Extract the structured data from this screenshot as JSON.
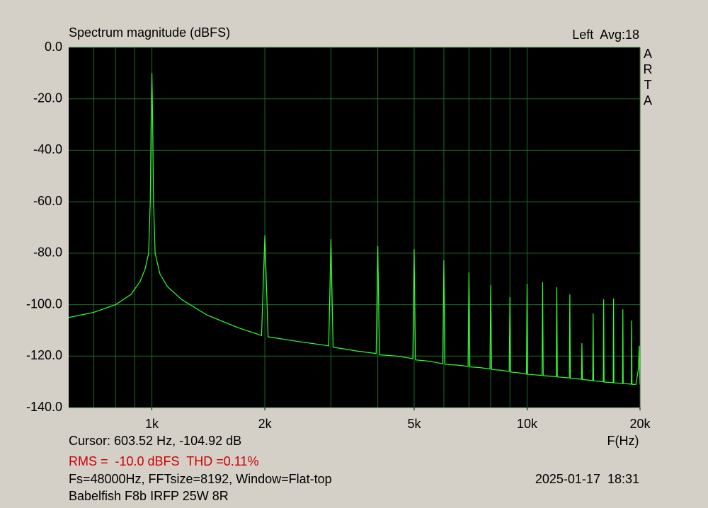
{
  "chart_data": {
    "type": "line",
    "title": "Spectrum magnitude (dBFS)",
    "channel_info": "Left  Avg:18",
    "brand_letters": [
      "A",
      "R",
      "T",
      "A"
    ],
    "cursor_text": "Cursor: 603.52 Hz, -104.92 dB",
    "x_label": "F(Hz)",
    "rms_text": "RMS =  -10.0 dBFS  THD =0.11%",
    "settings_text": "Fs=48000Hz, FFTsize=8192, Window=Flat-top",
    "timestamp": "2025-01-17  18:31",
    "device_text": "Babelfish F8b IRFP 25W 8R",
    "log_x": true,
    "grid": true,
    "color": "#33ff33",
    "xlim": [
      600,
      20000
    ],
    "ylim": [
      -140,
      0
    ],
    "xticks": [
      {
        "value": 1000,
        "label": "1k"
      },
      {
        "value": 2000,
        "label": "2k"
      },
      {
        "value": 5000,
        "label": "5k"
      },
      {
        "value": 10000,
        "label": "10k"
      },
      {
        "value": 20000,
        "label": "20k"
      }
    ],
    "xgrid": [
      700,
      800,
      900,
      1000,
      2000,
      3000,
      4000,
      5000,
      6000,
      7000,
      8000,
      9000,
      10000,
      20000
    ],
    "yticks": [
      {
        "value": 0,
        "label": "0.0"
      },
      {
        "value": -20,
        "label": "-20.0"
      },
      {
        "value": -40,
        "label": "-40.0"
      },
      {
        "value": -60,
        "label": "-60.0"
      },
      {
        "value": -80,
        "label": "-80.0"
      },
      {
        "value": -100,
        "label": "-100.0"
      },
      {
        "value": -120,
        "label": "-120.0"
      },
      {
        "value": -140,
        "label": "-140.0"
      }
    ],
    "x": [
      600,
      700,
      800,
      880,
      930,
      960,
      980,
      990,
      995,
      1000,
      1005,
      1010,
      1020,
      1050,
      1100,
      1200,
      1400,
      1700,
      1960,
      2000,
      2040,
      2500,
      2960,
      3000,
      3040,
      3500,
      3960,
      4000,
      4040,
      4500,
      4960,
      5000,
      5040,
      5500,
      5960,
      6000,
      6040,
      6500,
      6960,
      7000,
      7040,
      7500,
      7960,
      8000,
      8040,
      8500,
      8960,
      9000,
      9040,
      9500,
      9960,
      10000,
      10040,
      10500,
      10960,
      11000,
      11040,
      11500,
      11960,
      12000,
      12040,
      12500,
      12960,
      13000,
      13040,
      13500,
      13960,
      14000,
      14040,
      14500,
      14960,
      15000,
      15040,
      15500,
      15960,
      16000,
      16040,
      16500,
      16960,
      17000,
      17040,
      17500,
      17960,
      18000,
      18040,
      18500,
      18960,
      19000,
      19040,
      19500,
      19800,
      19900,
      20000
    ],
    "values": [
      -105,
      -103,
      -100,
      -96,
      -91,
      -86,
      -80,
      -60,
      -30,
      -10,
      -30,
      -60,
      -80,
      -88,
      -93,
      -98,
      -104,
      -109,
      -112,
      -73,
      -112.5,
      -114.5,
      -116,
      -74.5,
      -116.5,
      -118,
      -119,
      -77.3,
      -119.5,
      -120,
      -121,
      -78.4,
      -121.5,
      -122,
      -123,
      -82.8,
      -123.2,
      -123.5,
      -124,
      -87.5,
      -124.2,
      -124.5,
      -125,
      -92.4,
      -125.2,
      -125.5,
      -126,
      -97.1,
      -126.2,
      -126.5,
      -127,
      -91.9,
      -127.1,
      -127.3,
      -127.5,
      -91.3,
      -127.6,
      -127.8,
      -128,
      -93.2,
      -128.1,
      -128.3,
      -128.5,
      -96,
      -128.6,
      -128.8,
      -129,
      -115,
      -129.1,
      -129.3,
      -129.5,
      -103.4,
      -129.6,
      -129.8,
      -130,
      -97.9,
      -130.1,
      -130.2,
      -130.3,
      -97.6,
      -130.4,
      -130.5,
      -130.6,
      -101.8,
      -130.7,
      -130.8,
      -130.9,
      -106.2,
      -131,
      -131,
      -125,
      -116,
      -131
    ]
  }
}
